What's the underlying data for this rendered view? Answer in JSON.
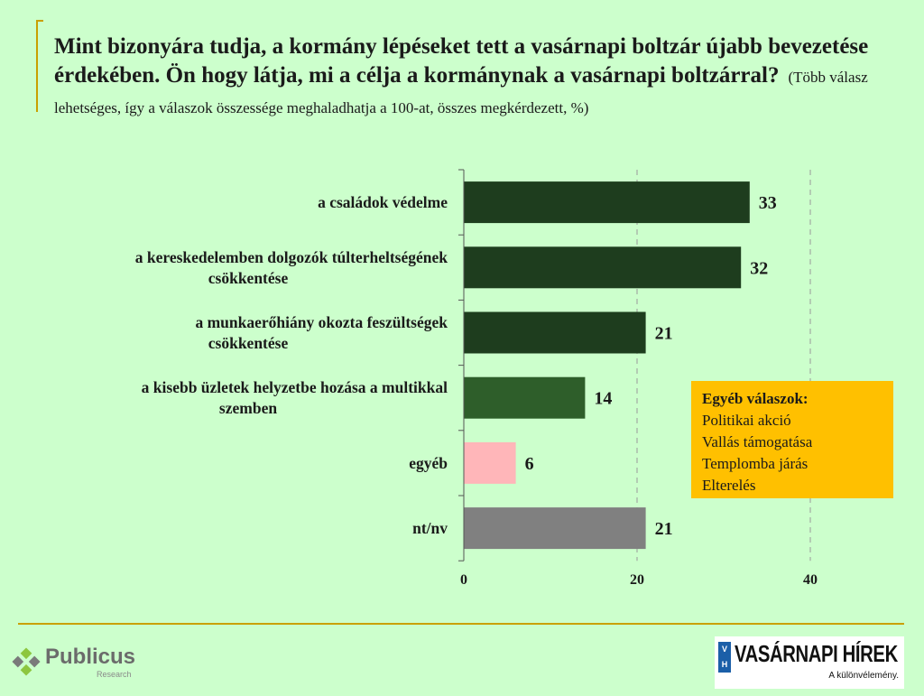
{
  "title": {
    "main": "Mint bizonyára tudja, a kormány lépéseket tett a vasárnapi boltzár újabb bevezetése érdekében. Ön hogy látja, mi a célja a kormánynak a vasárnapi boltzárral?",
    "subtitle": "(Több válasz lehetséges, így a válaszok összessége meghaladhatja a 100-at, összes megkérdezett, %)"
  },
  "chart_data": {
    "type": "bar",
    "orientation": "horizontal",
    "categories": [
      [
        "a családok védelme"
      ],
      [
        "a kereskedelemben dolgozók túlterheltségének",
        "csökkentése"
      ],
      [
        "a munkaerőhiány okozta feszültségek",
        "csökkentése"
      ],
      [
        "a kisebb üzletek helyzetbe hozása a multikkal",
        "szemben"
      ],
      [
        "egyéb"
      ],
      [
        "nt/nv"
      ]
    ],
    "values": [
      33,
      32,
      21,
      14,
      6,
      21
    ],
    "value_labels": [
      "33",
      "32",
      "21",
      "14",
      "6",
      "21"
    ],
    "colors": [
      "#1e3d1e",
      "#1e3d1e",
      "#1e3d1e",
      "#2e5e2a",
      "#ffb6b9",
      "#808080"
    ],
    "xlim": [
      0,
      40
    ],
    "xticks": [
      0,
      20,
      40
    ],
    "xtick_labels": [
      "0",
      "20",
      "40"
    ],
    "gridlines": [
      20,
      40
    ],
    "grid": true
  },
  "other_answers": {
    "title": "Egyéb válaszok:",
    "items": [
      "Politikai akció",
      "Vallás támogatása",
      "Templomba járás",
      "Elterelés"
    ]
  },
  "logos": {
    "publicus_name": "Publicus",
    "publicus_sub": "Research",
    "vh_badge": "V H",
    "vh_name": "VASÁRNAPI HÍREK",
    "vh_tag": "A különvélemény."
  },
  "colors": {
    "background": "#ccffcc",
    "accent_rule": "#c9a000",
    "box": "#ffc000"
  }
}
